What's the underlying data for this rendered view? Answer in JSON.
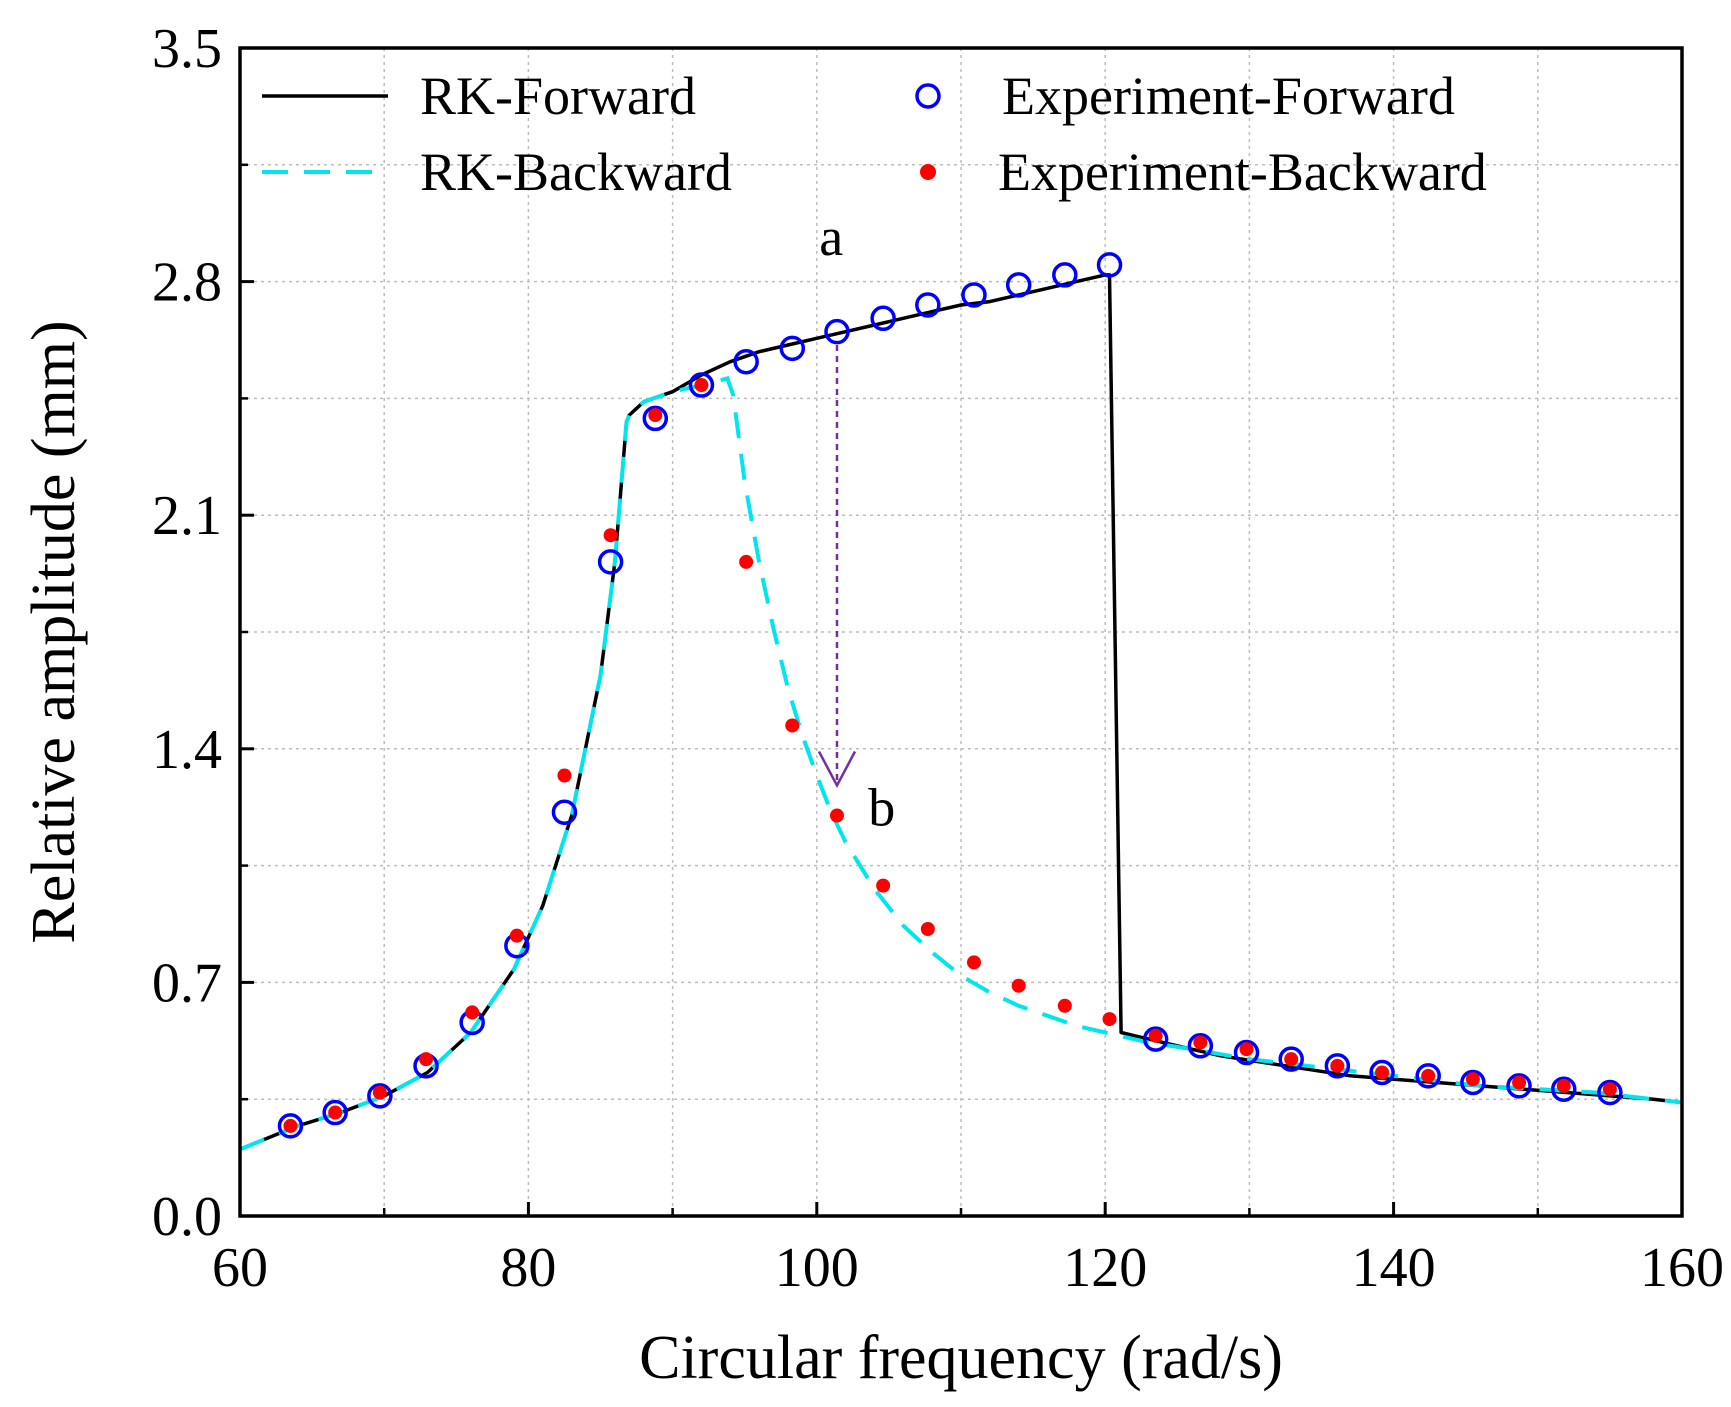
{
  "chart_data": {
    "type": "line",
    "title": "",
    "xlabel": "Circular frequency (rad/s)",
    "ylabel": "Relative amplitude (mm)",
    "xlim": [
      60,
      160
    ],
    "ylim": [
      0,
      3.5
    ],
    "xticks": [
      60,
      80,
      100,
      120,
      140,
      160
    ],
    "yticks": [
      0.0,
      0.7,
      1.4,
      2.1,
      2.8,
      3.5
    ],
    "ytick_labels": [
      "0.0",
      "0.7",
      "1.4",
      "2.1",
      "2.8",
      "3.5"
    ],
    "grid": true,
    "legend_position": "top",
    "series": [
      {
        "name": "RK-Forward",
        "style": "solid-line",
        "color": "#000000",
        "x": [
          60,
          64,
          67,
          70,
          73,
          76,
          79,
          81,
          83,
          85,
          86,
          86.8,
          87,
          88,
          90,
          92,
          94,
          96,
          98,
          100,
          102,
          104,
          106,
          108,
          110,
          112,
          114,
          116,
          118,
          120,
          120.3,
          121.1,
          123,
          125,
          128,
          131,
          134,
          137,
          140,
          143,
          146,
          149,
          152,
          155,
          158,
          160
        ],
        "values": [
          0.2,
          0.27,
          0.31,
          0.36,
          0.43,
          0.55,
          0.74,
          0.93,
          1.2,
          1.62,
          1.96,
          2.38,
          2.4,
          2.44,
          2.47,
          2.52,
          2.56,
          2.59,
          2.61,
          2.63,
          2.65,
          2.67,
          2.69,
          2.71,
          2.73,
          2.74,
          2.76,
          2.78,
          2.8,
          2.82,
          2.82,
          0.55,
          0.53,
          0.51,
          0.48,
          0.46,
          0.44,
          0.42,
          0.41,
          0.4,
          0.39,
          0.38,
          0.37,
          0.36,
          0.35,
          0.34
        ]
      },
      {
        "name": "RK-Backward",
        "style": "dashed-line",
        "color": "#00e5ee",
        "x": [
          60,
          64,
          67,
          70,
          73,
          76,
          79,
          81,
          83,
          85,
          86,
          86.8,
          87,
          88,
          90,
          92,
          93.8,
          94.2,
          95,
          96,
          97,
          98,
          99,
          100,
          101,
          102,
          104,
          106,
          108,
          110,
          112,
          114,
          116,
          118,
          120,
          123,
          126,
          130,
          134,
          138,
          142,
          146,
          150,
          154,
          158,
          160
        ],
        "values": [
          0.2,
          0.27,
          0.31,
          0.36,
          0.43,
          0.55,
          0.74,
          0.93,
          1.2,
          1.62,
          1.96,
          2.38,
          2.4,
          2.44,
          2.47,
          2.49,
          2.51,
          2.46,
          2.2,
          1.96,
          1.76,
          1.58,
          1.44,
          1.32,
          1.21,
          1.12,
          0.98,
          0.87,
          0.79,
          0.72,
          0.67,
          0.63,
          0.6,
          0.57,
          0.55,
          0.52,
          0.5,
          0.47,
          0.45,
          0.43,
          0.41,
          0.39,
          0.38,
          0.37,
          0.35,
          0.34
        ]
      },
      {
        "name": "Experiment-Forward",
        "style": "open-circle",
        "color": "#0000ff",
        "x": [
          63.5,
          66.6,
          69.7,
          72.9,
          76.1,
          79.2,
          82.5,
          85.7,
          88.8,
          92.0,
          95.1,
          98.3,
          101.4,
          104.6,
          107.7,
          110.9,
          114.0,
          117.2,
          120.3,
          123.5,
          126.6,
          129.8,
          132.9,
          136.1,
          139.2,
          142.4,
          145.5,
          148.7,
          151.8,
          155.0
        ],
        "values": [
          0.27,
          0.31,
          0.36,
          0.45,
          0.58,
          0.81,
          1.21,
          1.96,
          2.39,
          2.49,
          2.56,
          2.6,
          2.65,
          2.69,
          2.73,
          2.76,
          2.79,
          2.82,
          2.85,
          0.53,
          0.51,
          0.49,
          0.47,
          0.45,
          0.43,
          0.42,
          0.4,
          0.39,
          0.38,
          0.37
        ]
      },
      {
        "name": "Experiment-Backward",
        "style": "filled-dot",
        "color": "#ff0000",
        "x": [
          63.5,
          66.6,
          69.7,
          72.9,
          76.1,
          79.2,
          82.5,
          85.7,
          88.8,
          92.0,
          95.1,
          98.3,
          101.4,
          104.6,
          107.7,
          110.9,
          114.0,
          117.2,
          120.3,
          123.5,
          126.6,
          129.8,
          132.9,
          136.1,
          139.2,
          142.4,
          145.5,
          148.7,
          151.8,
          155.0
        ],
        "values": [
          0.27,
          0.31,
          0.37,
          0.47,
          0.61,
          0.84,
          1.32,
          2.04,
          2.4,
          2.49,
          1.96,
          1.47,
          1.2,
          0.99,
          0.86,
          0.76,
          0.69,
          0.63,
          0.59,
          0.54,
          0.52,
          0.5,
          0.47,
          0.45,
          0.43,
          0.42,
          0.41,
          0.4,
          0.39,
          0.38
        ]
      }
    ],
    "annotations": [
      {
        "text": "a",
        "x": 101,
        "y": 2.88
      },
      {
        "text": "b",
        "x": 104.5,
        "y": 1.17
      }
    ],
    "jump_arrow": {
      "from": [
        101.4,
        2.61
      ],
      "to": [
        101.4,
        1.29
      ],
      "color": "#7030a0",
      "style": "dashed"
    }
  }
}
